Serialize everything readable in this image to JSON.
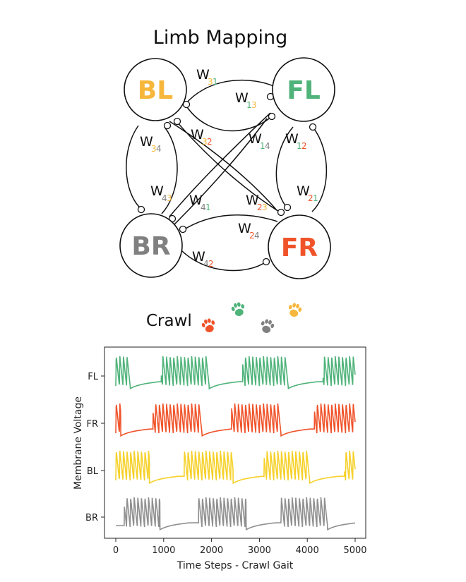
{
  "diagram": {
    "title": "Limb Mapping",
    "nodes": [
      {
        "id": "BL",
        "label": "BL",
        "color": "#f6b73c"
      },
      {
        "id": "FL",
        "label": "FL",
        "color": "#4fb37a"
      },
      {
        "id": "BR",
        "label": "BR",
        "color": "#808080"
      },
      {
        "id": "FR",
        "label": "FR",
        "color": "#f0532a"
      }
    ],
    "weights": [
      {
        "id": "w31",
        "base": "W",
        "d1": "3",
        "d2": "1"
      },
      {
        "id": "w13",
        "base": "W",
        "d1": "1",
        "d2": "3"
      },
      {
        "id": "w34",
        "base": "W",
        "d1": "3",
        "d2": "4"
      },
      {
        "id": "w32",
        "base": "W",
        "d1": "3",
        "d2": "2"
      },
      {
        "id": "w14",
        "base": "W",
        "d1": "1",
        "d2": "4"
      },
      {
        "id": "w12",
        "base": "W",
        "d1": "1",
        "d2": "2"
      },
      {
        "id": "w43",
        "base": "W",
        "d1": "4",
        "d2": "3"
      },
      {
        "id": "w41",
        "base": "W",
        "d1": "4",
        "d2": "1"
      },
      {
        "id": "w23",
        "base": "W",
        "d1": "2",
        "d2": "3"
      },
      {
        "id": "w21",
        "base": "W",
        "d1": "2",
        "d2": "1"
      },
      {
        "id": "w24",
        "base": "W",
        "d1": "2",
        "d2": "4"
      },
      {
        "id": "w42",
        "base": "W",
        "d1": "4",
        "d2": "2"
      }
    ],
    "digit_colors": {
      "1": "#4fb37a",
      "2": "#f0532a",
      "3": "#f6b73c",
      "4": "#808080"
    }
  },
  "gait_label": "Crawl",
  "paw_icons": [
    "paw-icon-fr",
    "paw-icon-fl",
    "paw-icon-br",
    "paw-icon-bl"
  ],
  "chart_data": {
    "type": "line",
    "xlabel": "Time Steps - Crawl Gait",
    "ylabel": "Membrane Voltage",
    "xlim": [
      0,
      5000
    ],
    "xticks": [
      0,
      1000,
      2000,
      3000,
      4000,
      5000
    ],
    "grid": false,
    "series": [
      {
        "name": "FL",
        "color": "#4fb37a",
        "bursts": [
          [
            0,
            300
          ],
          [
            950,
            1950
          ],
          [
            2650,
            3600
          ],
          [
            4330,
            5000
          ]
        ]
      },
      {
        "name": "FR",
        "color": "#f0532a",
        "bursts": [
          [
            0,
            100
          ],
          [
            780,
            1800
          ],
          [
            2420,
            3450
          ],
          [
            4150,
            5000
          ]
        ]
      },
      {
        "name": "BL",
        "color": "#f6d12a",
        "bursts": [
          [
            0,
            700
          ],
          [
            1430,
            2450
          ],
          [
            3100,
            4050
          ],
          [
            4780,
            5000
          ]
        ]
      },
      {
        "name": "BR",
        "color": "#8f8f8f",
        "bursts": [
          [
            180,
            920
          ],
          [
            1730,
            2720
          ],
          [
            3450,
            4420
          ]
        ]
      }
    ]
  }
}
